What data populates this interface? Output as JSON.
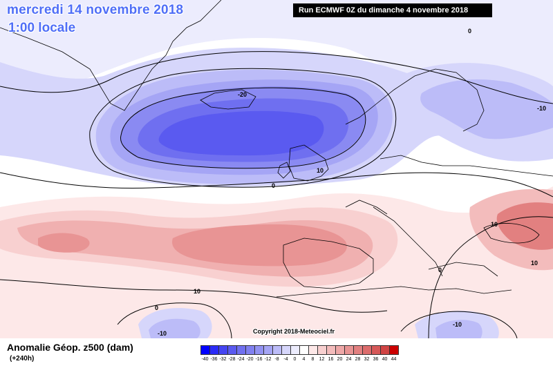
{
  "title": {
    "date": "mercredi 14 novembre 2018",
    "time": "1:00 locale"
  },
  "run": "Run ECMWF 0Z du dimanche 4 novembre 2018",
  "copyright": "Copyright 2018-Meteociel.fr",
  "legend": {
    "title": "Anomalie Géop. z500 (dam)",
    "subtitle": "(+240h)",
    "values": [
      "-40",
      "-36",
      "-32",
      "-28",
      "-24",
      "-20",
      "-16",
      "-12",
      "-8",
      "-4",
      "0",
      "4",
      "8",
      "12",
      "16",
      "20",
      "24",
      "28",
      "32",
      "36",
      "40",
      "44"
    ],
    "colors": [
      "#0000ff",
      "#2b2bf7",
      "#4545f2",
      "#5a5af0",
      "#7070f0",
      "#8080f0",
      "#9292f2",
      "#a5a5f5",
      "#bcbcf8",
      "#d6d6fb",
      "#ececfd",
      "#ffffff",
      "#fde8e8",
      "#f8d0d0",
      "#f3bcbc",
      "#eea8a8",
      "#e89494",
      "#e28080",
      "#dc6c6c",
      "#d65858",
      "#d04444",
      "#cc0000"
    ]
  },
  "contour_labels": [
    "0",
    "-20",
    "-10",
    "10",
    "0",
    "10",
    "-10",
    "10",
    "0",
    "-10",
    "0",
    "10"
  ]
}
